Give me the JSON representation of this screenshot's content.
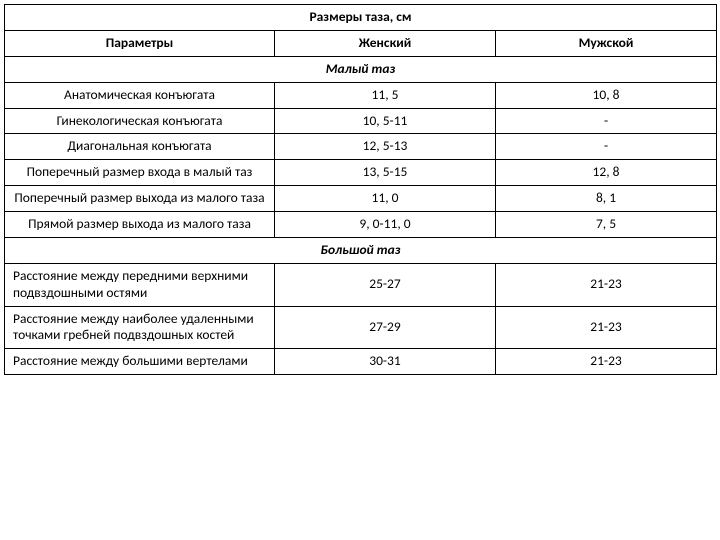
{
  "title": "Размеры таза, см",
  "headers": {
    "params": "Параметры",
    "female": "Женский",
    "male": "Мужской"
  },
  "section1": "Малый таз",
  "section2": "Большой таз",
  "rows1": [
    {
      "p": "Анатомическая конъюгата",
      "f": "11, 5",
      "m": "10, 8"
    },
    {
      "p": "Гинекологическая конъюгата",
      "f": "10, 5-11",
      "m": "-"
    },
    {
      "p": "Диагональная конъюгата",
      "f": "12, 5-13",
      "m": "-"
    },
    {
      "p": "Поперечный размер входа в малый таз",
      "f": "13, 5-15",
      "m": "12, 8"
    },
    {
      "p": "Поперечный размер выхода из малого таза",
      "f": "11, 0",
      "m": "8, 1"
    },
    {
      "p": "Прямой размер выхода из малого таза",
      "f": "9, 0-11, 0",
      "m": "7, 5"
    }
  ],
  "rows2": [
    {
      "p": "Расстояние между передними верхними подвздошными остями",
      "f": "25-27",
      "m": "21-23"
    },
    {
      "p": "Расстояние между наиболее удаленными точками гребней подвздошных костей",
      "f": "27-29",
      "m": "21-23"
    },
    {
      "p": "Расстояние между большими вертелами",
      "f": "30-31",
      "m": "21-23"
    }
  ]
}
